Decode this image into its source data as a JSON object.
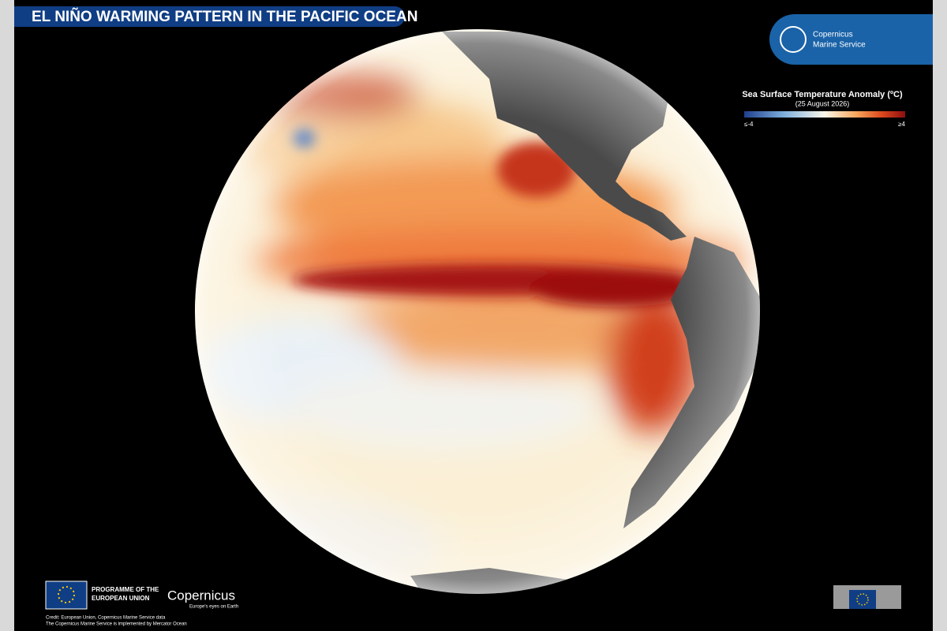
{
  "header": {
    "title": "EL NIÑO WARMING PATTERN IN THE PACIFIC OCEAN"
  },
  "logo": {
    "line1": "Copernicus",
    "line2": "Marine Service"
  },
  "legend": {
    "title": "Sea Surface Temperature Anomaly (ºC)",
    "date": "(25 August 2026)",
    "min_label": "≤-4",
    "max_label": "≥4"
  },
  "footer": {
    "programme_line1": "PROGRAMME OF THE",
    "programme_line2": "EUROPEAN UNION",
    "brand": "Copernicus",
    "tagline": "Europe's eyes on Earth",
    "credit_line1": "Credit: European Union, Copernicus Marine Service data",
    "credit_line2": "The Copernicus Marine Service is implemented by Mercator Ocean"
  }
}
